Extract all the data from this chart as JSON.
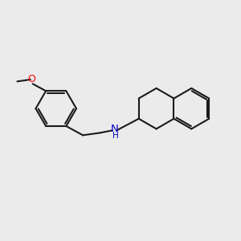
{
  "bg_color": "#ebebeb",
  "bond_color": "#1a1a1a",
  "N_color": "#0000cd",
  "O_color": "#ff0000",
  "bond_width": 1.5,
  "fig_size": [
    3.0,
    3.0
  ],
  "dpi": 100,
  "xlim": [
    0,
    10.0
  ],
  "ylim": [
    0,
    10.0
  ]
}
